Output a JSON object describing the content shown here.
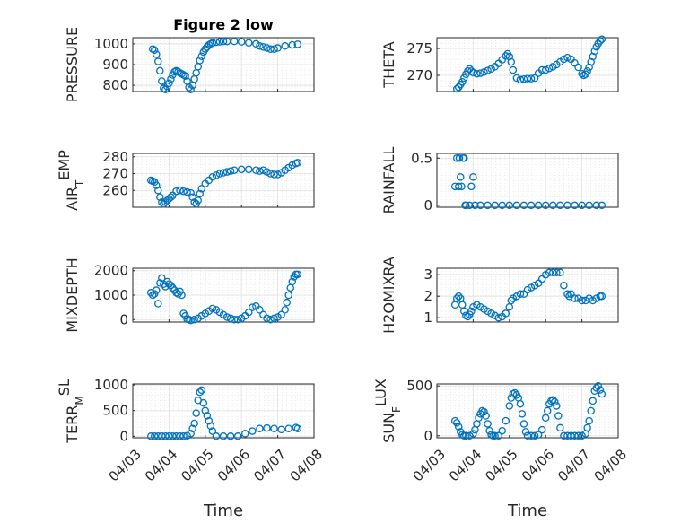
{
  "chart_data": [
    {
      "type": "scatter",
      "title": "Figure 2 low",
      "xlabel": "",
      "ylabel": "PRESSURE",
      "ylabel_sub": "",
      "ylabel_suffix": "",
      "ylim": [
        770,
        1030
      ],
      "yticks": [
        800,
        900,
        1000
      ],
      "ytick_labels": [
        "800",
        "900",
        "1000"
      ],
      "xlim_days": [
        0,
        5
      ],
      "xticks": [],
      "grid": "on (major + minor dotted)",
      "x": [
        0.55,
        0.6,
        0.65,
        0.7,
        0.75,
        0.8,
        0.85,
        0.9,
        0.95,
        1.0,
        1.05,
        1.1,
        1.15,
        1.2,
        1.25,
        1.3,
        1.35,
        1.4,
        1.45,
        1.5,
        1.55,
        1.6,
        1.65,
        1.7,
        1.75,
        1.8,
        1.85,
        1.9,
        1.95,
        2.0,
        2.05,
        2.1,
        2.15,
        2.2,
        2.3,
        2.4,
        2.5,
        2.6,
        2.8,
        3.0,
        3.2,
        3.4,
        3.5,
        3.6,
        3.7,
        3.8,
        3.9,
        4.0,
        4.2,
        4.4,
        4.55
      ],
      "y": [
        975,
        970,
        950,
        915,
        870,
        820,
        785,
        780,
        795,
        810,
        830,
        850,
        865,
        870,
        866,
        860,
        855,
        850,
        845,
        820,
        790,
        780,
        800,
        830,
        860,
        890,
        920,
        940,
        960,
        975,
        985,
        995,
        1000,
        1005,
        1008,
        1010,
        1012,
        1012,
        1012,
        1010,
        1005,
        1000,
        990,
        985,
        980,
        975,
        975,
        980,
        990,
        995,
        998
      ]
    },
    {
      "type": "scatter",
      "title": "",
      "xlabel": "",
      "ylabel": "THETA",
      "ylabel_sub": "",
      "ylabel_suffix": "",
      "ylim": [
        267,
        277
      ],
      "yticks": [
        270,
        275
      ],
      "ytick_labels": [
        "270",
        "275"
      ],
      "xlim_days": [
        0,
        5
      ],
      "xticks": [],
      "grid": "on (major + minor dotted)",
      "x": [
        0.55,
        0.6,
        0.65,
        0.7,
        0.75,
        0.8,
        0.85,
        0.9,
        0.95,
        1.0,
        1.1,
        1.2,
        1.3,
        1.4,
        1.5,
        1.6,
        1.7,
        1.8,
        1.9,
        1.95,
        2.0,
        2.05,
        2.1,
        2.2,
        2.3,
        2.4,
        2.5,
        2.6,
        2.7,
        2.8,
        2.9,
        3.0,
        3.1,
        3.2,
        3.3,
        3.4,
        3.5,
        3.6,
        3.7,
        3.8,
        3.9,
        4.0,
        4.05,
        4.1,
        4.15,
        4.2,
        4.25,
        4.3,
        4.35,
        4.4,
        4.45,
        4.5,
        4.55
      ],
      "y": [
        267.5,
        267.8,
        268.3,
        268.8,
        269.5,
        270.2,
        270.8,
        271.2,
        270.8,
        270.5,
        270.3,
        270.4,
        270.6,
        270.9,
        271.2,
        271.6,
        272.2,
        272.9,
        273.6,
        274.0,
        273.5,
        272.5,
        271.0,
        269.5,
        269.2,
        269.3,
        269.4,
        269.4,
        269.5,
        270.4,
        271.0,
        271.0,
        271.3,
        271.6,
        272.0,
        272.5,
        273.0,
        273.3,
        273.0,
        272.3,
        271.5,
        270.3,
        270.0,
        270.2,
        270.8,
        271.5,
        272.5,
        273.5,
        274.5,
        275.3,
        275.9,
        276.4,
        276.7
      ]
    },
    {
      "type": "scatter",
      "title": "",
      "xlabel": "",
      "ylabel": "AIR",
      "ylabel_sub": "T",
      "ylabel_suffix": "EMP",
      "ylim": [
        250,
        282
      ],
      "yticks": [
        260,
        270,
        280
      ],
      "ytick_labels": [
        "260",
        "270",
        "280"
      ],
      "xlim_days": [
        0,
        5
      ],
      "xticks": [],
      "grid": "on (major + minor dotted)",
      "x": [
        0.5,
        0.55,
        0.6,
        0.65,
        0.7,
        0.75,
        0.8,
        0.85,
        0.9,
        0.95,
        1.0,
        1.05,
        1.1,
        1.2,
        1.3,
        1.4,
        1.5,
        1.6,
        1.65,
        1.7,
        1.75,
        1.8,
        1.85,
        1.9,
        2.0,
        2.1,
        2.2,
        2.3,
        2.4,
        2.5,
        2.6,
        2.7,
        2.8,
        3.0,
        3.2,
        3.4,
        3.5,
        3.6,
        3.7,
        3.8,
        3.9,
        4.0,
        4.1,
        4.2,
        4.3,
        4.4,
        4.5,
        4.55
      ],
      "y": [
        266,
        265.5,
        265,
        263,
        260,
        256,
        253,
        252,
        253,
        254,
        255,
        256,
        257,
        259.5,
        260,
        259.5,
        259,
        258.5,
        256,
        253,
        252,
        254,
        258,
        261,
        264,
        266,
        268,
        269,
        270,
        270.5,
        271,
        271.5,
        272,
        272.5,
        272.5,
        272,
        271.5,
        272,
        271,
        270,
        269.5,
        269.5,
        270.5,
        272,
        273.5,
        275,
        276,
        276.5
      ]
    },
    {
      "type": "scatter",
      "title": "",
      "xlabel": "",
      "ylabel": "RAINFALL",
      "ylabel_sub": "",
      "ylabel_suffix": "",
      "ylim": [
        -0.02,
        0.55
      ],
      "yticks": [
        0,
        0.5
      ],
      "ytick_labels": [
        "0",
        "0.5"
      ],
      "xlim_days": [
        0,
        5
      ],
      "xticks": [],
      "grid": "on (major + minor dotted)",
      "x": [
        0.5,
        0.55,
        0.6,
        0.62,
        0.65,
        0.68,
        0.72,
        0.75,
        0.78,
        0.95,
        1.0,
        1.05,
        0.8,
        0.9,
        1.2,
        1.4,
        1.6,
        1.8,
        2.0,
        2.2,
        2.4,
        2.6,
        2.8,
        3.0,
        3.2,
        3.4,
        3.6,
        3.8,
        4.0,
        4.2,
        4.4,
        4.55
      ],
      "y": [
        0.2,
        0.5,
        0.2,
        0.5,
        0.3,
        0.2,
        0.5,
        0.5,
        0,
        0.2,
        0.3,
        0,
        0,
        0,
        0,
        0,
        0,
        0,
        0,
        0,
        0,
        0,
        0,
        0,
        0,
        0,
        0,
        0,
        0,
        0,
        0,
        0
      ]
    },
    {
      "type": "scatter",
      "title": "",
      "xlabel": "",
      "ylabel": "MIXDEPTH",
      "ylabel_sub": "",
      "ylabel_suffix": "",
      "ylim": [
        -100,
        2100
      ],
      "yticks": [
        0,
        1000,
        2000
      ],
      "ytick_labels": [
        "0",
        "1000",
        "2000"
      ],
      "xlim_days": [
        0,
        5
      ],
      "xticks": [],
      "grid": "on (major + minor dotted)",
      "x": [
        0.5,
        0.55,
        0.6,
        0.65,
        0.7,
        0.75,
        0.8,
        0.85,
        0.9,
        0.95,
        1.0,
        1.05,
        1.1,
        1.15,
        1.2,
        1.25,
        1.3,
        1.35,
        1.4,
        1.45,
        1.5,
        1.55,
        1.6,
        1.7,
        1.8,
        1.9,
        2.0,
        2.1,
        2.2,
        2.3,
        2.4,
        2.5,
        2.6,
        2.7,
        2.8,
        2.9,
        3.0,
        3.1,
        3.2,
        3.3,
        3.4,
        3.5,
        3.6,
        3.7,
        3.8,
        3.9,
        4.0,
        4.1,
        4.2,
        4.25,
        4.3,
        4.35,
        4.4,
        4.45,
        4.5,
        4.55
      ],
      "y": [
        1100,
        1000,
        1050,
        1200,
        650,
        1500,
        1700,
        1450,
        1350,
        1550,
        1450,
        1400,
        1300,
        1200,
        1100,
        1050,
        1150,
        1000,
        250,
        150,
        20,
        0,
        -30,
        0,
        50,
        150,
        250,
        350,
        450,
        400,
        300,
        200,
        100,
        50,
        0,
        0,
        50,
        150,
        300,
        500,
        550,
        400,
        200,
        50,
        0,
        50,
        100,
        200,
        400,
        700,
        1000,
        1300,
        1550,
        1750,
        1850,
        1850
      ]
    },
    {
      "type": "scatter",
      "title": "",
      "xlabel": "",
      "ylabel": "H2OMIXRA",
      "ylabel_sub": "",
      "ylabel_suffix": "",
      "ylim": [
        0.8,
        3.3
      ],
      "yticks": [
        1,
        2,
        3
      ],
      "ytick_labels": [
        "1",
        "2",
        "3"
      ],
      "xlim_days": [
        0,
        5
      ],
      "xticks": [],
      "grid": "on (major + minor dotted)",
      "x": [
        0.5,
        0.55,
        0.6,
        0.65,
        0.7,
        0.75,
        0.8,
        0.85,
        0.9,
        0.95,
        1.0,
        1.1,
        1.2,
        1.3,
        1.4,
        1.5,
        1.6,
        1.7,
        1.8,
        1.9,
        2.0,
        2.05,
        2.1,
        2.2,
        2.3,
        2.4,
        2.5,
        2.6,
        2.7,
        2.8,
        2.9,
        3.0,
        3.1,
        3.2,
        3.3,
        3.4,
        3.5,
        3.6,
        3.65,
        3.7,
        3.8,
        3.9,
        4.0,
        4.1,
        4.2,
        4.3,
        4.4,
        4.5,
        4.55
      ],
      "y": [
        1.6,
        1.9,
        2.0,
        1.9,
        1.6,
        1.3,
        1.1,
        1.05,
        1.15,
        1.3,
        1.5,
        1.6,
        1.5,
        1.4,
        1.3,
        1.2,
        1.1,
        1.0,
        1.05,
        1.2,
        1.5,
        1.8,
        1.9,
        2.0,
        2.1,
        2.1,
        2.3,
        2.4,
        2.5,
        2.6,
        2.8,
        3.0,
        3.1,
        3.1,
        3.1,
        3.1,
        2.5,
        2.1,
        2.0,
        2.1,
        1.9,
        1.9,
        1.8,
        1.8,
        1.9,
        1.8,
        1.9,
        2.0,
        2.0
      ]
    },
    {
      "type": "scatter",
      "title": "",
      "xlabel": "Time",
      "ylabel": "TERR",
      "ylabel_sub": "M",
      "ylabel_suffix": "SL",
      "ylim": [
        -30,
        1020
      ],
      "yticks": [
        0,
        500,
        1000
      ],
      "ytick_labels": [
        "0",
        "500",
        "1000"
      ],
      "xlim_days": [
        0,
        5
      ],
      "xticks": [
        0,
        1,
        2,
        3,
        4,
        5
      ],
      "xtick_labels": [
        "04/03",
        "04/04",
        "04/05",
        "04/06",
        "04/07",
        "04/08"
      ],
      "grid": "on (major + minor dotted)",
      "x": [
        0.5,
        0.6,
        0.7,
        0.8,
        0.9,
        1.0,
        1.1,
        1.2,
        1.3,
        1.4,
        1.5,
        1.6,
        1.65,
        1.7,
        1.75,
        1.8,
        1.85,
        1.9,
        1.95,
        2.0,
        2.05,
        2.1,
        2.15,
        2.2,
        2.3,
        2.5,
        2.7,
        2.9,
        3.1,
        3.3,
        3.5,
        3.7,
        3.9,
        4.1,
        4.3,
        4.5,
        4.55
      ],
      "y": [
        0,
        0,
        0,
        0,
        0,
        0,
        0,
        0,
        0,
        0,
        10,
        50,
        150,
        250,
        450,
        700,
        860,
        900,
        650,
        500,
        400,
        300,
        200,
        100,
        0,
        0,
        0,
        0,
        50,
        100,
        150,
        160,
        150,
        130,
        150,
        170,
        150
      ]
    },
    {
      "type": "scatter",
      "title": "",
      "xlabel": "Time",
      "ylabel": "SUN",
      "ylabel_sub": "F",
      "ylabel_suffix": "LUX",
      "ylim": [
        -20,
        520
      ],
      "yticks": [
        0,
        500
      ],
      "ytick_labels": [
        "0",
        "500"
      ],
      "xlim_days": [
        0,
        5
      ],
      "xticks": [
        0,
        1,
        2,
        3,
        4,
        5
      ],
      "xtick_labels": [
        "04/03",
        "04/04",
        "04/05",
        "04/06",
        "04/07",
        "04/08"
      ],
      "grid": "on (major + minor dotted)",
      "x": [
        0.5,
        0.55,
        0.6,
        0.65,
        0.7,
        0.75,
        0.8,
        0.9,
        1.0,
        1.05,
        1.1,
        1.15,
        1.2,
        1.25,
        1.3,
        1.35,
        1.4,
        1.45,
        1.5,
        1.55,
        1.6,
        1.7,
        1.8,
        1.9,
        2.0,
        2.05,
        2.1,
        2.15,
        2.2,
        2.25,
        2.3,
        2.35,
        2.4,
        2.45,
        2.5,
        2.6,
        2.7,
        2.8,
        2.9,
        3.0,
        3.05,
        3.1,
        3.15,
        3.2,
        3.25,
        3.3,
        3.35,
        3.4,
        3.5,
        3.6,
        3.7,
        3.8,
        3.9,
        4.0,
        4.1,
        4.15,
        4.2,
        4.25,
        4.3,
        4.35,
        4.4,
        4.45,
        4.5,
        4.55
      ],
      "y": [
        150,
        130,
        90,
        40,
        10,
        0,
        0,
        0,
        20,
        60,
        120,
        180,
        220,
        250,
        240,
        200,
        120,
        50,
        10,
        0,
        0,
        0,
        50,
        150,
        300,
        380,
        420,
        430,
        410,
        380,
        320,
        220,
        120,
        40,
        0,
        0,
        0,
        10,
        60,
        180,
        250,
        320,
        350,
        360,
        340,
        300,
        200,
        80,
        0,
        0,
        0,
        0,
        0,
        0,
        20,
        80,
        150,
        250,
        350,
        450,
        480,
        500,
        460,
        420
      ]
    }
  ]
}
